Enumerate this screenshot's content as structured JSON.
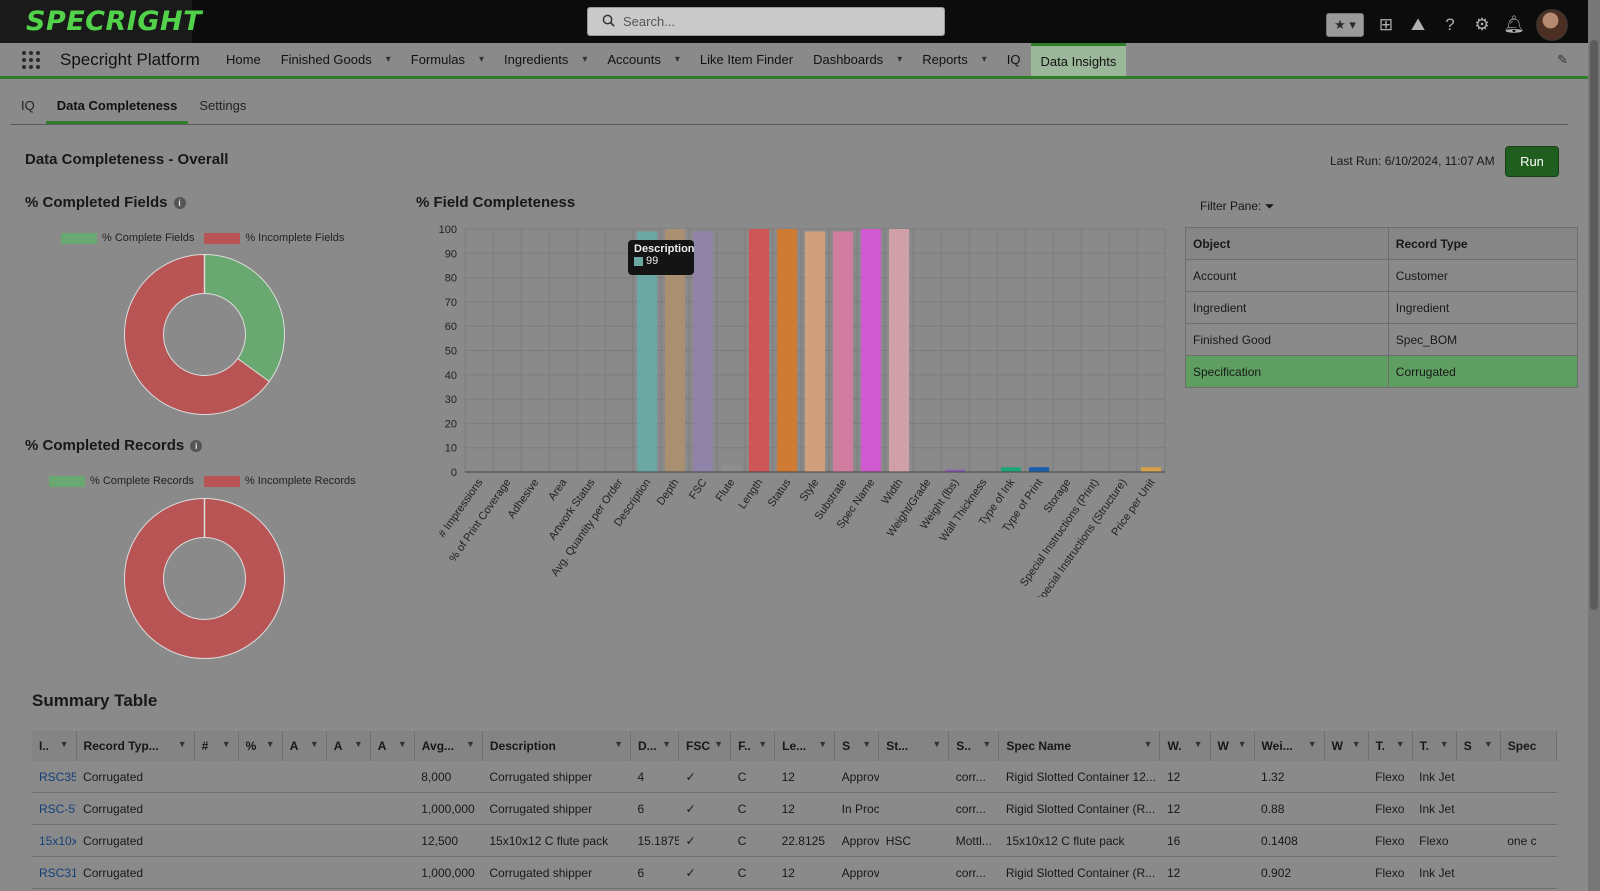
{
  "topbar": {
    "logo": "SPECRIGHT",
    "search_placeholder": "Search..."
  },
  "navbar": {
    "app_name": "Specright Platform",
    "items": [
      {
        "label": "Home",
        "dropdown": false
      },
      {
        "label": "Finished Goods",
        "dropdown": true
      },
      {
        "label": "Formulas",
        "dropdown": true
      },
      {
        "label": "Ingredients",
        "dropdown": true
      },
      {
        "label": "Accounts",
        "dropdown": true
      },
      {
        "label": "Like Item Finder",
        "dropdown": false
      },
      {
        "label": "Dashboards",
        "dropdown": true
      },
      {
        "label": "Reports",
        "dropdown": true
      },
      {
        "label": "IQ",
        "dropdown": false
      },
      {
        "label": "Data Insights",
        "dropdown": false,
        "active": true
      }
    ]
  },
  "tabs": [
    {
      "label": "IQ"
    },
    {
      "label": "Data Completeness",
      "active": true
    },
    {
      "label": "Settings"
    }
  ],
  "overall_title": "Data Completeness - Overall",
  "last_run": "Last Run: 6/10/2024, 11:07 AM",
  "run_label": "Run",
  "fields_panel": {
    "title": "% Completed Fields",
    "legend_complete": "% Complete Fields",
    "legend_incomplete": "% Incomplete Fields"
  },
  "records_panel": {
    "title": "% Completed Records",
    "legend_complete": "% Complete Records",
    "legend_incomplete": "% Incomplete Records"
  },
  "field_chart_title": "% Field Completeness",
  "tooltip": {
    "label": "Description",
    "value": "99"
  },
  "filter_label": "Filter Pane:",
  "filter_table": {
    "headers": [
      "Object",
      "Record Type"
    ],
    "rows": [
      [
        "Account",
        "Customer"
      ],
      [
        "Ingredient",
        "Ingredient"
      ],
      [
        "Finished Good",
        "Spec_BOM"
      ],
      [
        "Specification",
        "Corrugated"
      ]
    ],
    "selected_row": 3
  },
  "summary": {
    "title": "Summary Table",
    "headers": [
      "I..",
      "Record Typ...",
      "#",
      "%",
      "A",
      "A",
      "A",
      "Avg...",
      "Description",
      "D...",
      "FSC",
      "F..",
      "Le...",
      "S",
      "St...",
      "S..",
      "Spec Name",
      "W.",
      "W",
      "Wei...",
      "W",
      "T.",
      "T.",
      "S",
      "Spec"
    ],
    "rows": [
      [
        "RSC35",
        "Corrugated",
        "",
        "",
        "",
        "",
        "",
        "8,000",
        "Corrugated shipper",
        "4",
        "✓",
        "C",
        "12",
        "Approv",
        "",
        "corr...",
        "Rigid Slotted Container 12...",
        "12",
        "",
        "1.32",
        "",
        "Flexo",
        "Ink Jet",
        "",
        ""
      ],
      [
        "RSC-5'",
        "Corrugated",
        "",
        "",
        "",
        "",
        "",
        "1,000,000",
        "Corrugated shipper",
        "6",
        "✓",
        "C",
        "12",
        "In Proc",
        "",
        "corr...",
        "Rigid Slotted Container (R...",
        "12",
        "",
        "0.88",
        "",
        "Flexo",
        "Ink Jet",
        "",
        ""
      ],
      [
        "15x10x",
        "Corrugated",
        "",
        "",
        "",
        "",
        "",
        "12,500",
        "15x10x12 C flute pack",
        "15.1875",
        "✓",
        "C",
        "22.8125",
        "Approv",
        "HSC",
        "Mottl...",
        "15x10x12 C flute pack",
        "16",
        "",
        "0.1408",
        "",
        "Flexo",
        "Flexo",
        "",
        "one c"
      ],
      [
        "RSC31'",
        "Corrugated",
        "",
        "",
        "",
        "",
        "",
        "1,000,000",
        "Corrugated shipper",
        "6",
        "✓",
        "C",
        "12",
        "Approv",
        "",
        "corr...",
        "Rigid Slotted Container (R...",
        "12",
        "",
        "0.902",
        "",
        "Flexo",
        "Ink Jet",
        "",
        ""
      ]
    ]
  },
  "colors": {
    "complete": "#69a870",
    "incomplete": "#b85454",
    "brand_green": "#2f7d2a"
  },
  "chart_data": [
    {
      "type": "pie",
      "labels": [
        "% Complete Fields",
        "% Incomplete Fields"
      ],
      "values": [
        35,
        65
      ]
    },
    {
      "type": "pie",
      "labels": [
        "% Complete Records",
        "% Incomplete Records"
      ],
      "values": [
        0,
        100
      ]
    },
    {
      "type": "bar",
      "ylim": [
        0,
        100
      ],
      "yticks": [
        0,
        10,
        20,
        30,
        40,
        50,
        60,
        70,
        80,
        90,
        100
      ],
      "grid": true,
      "categories": [
        "# Impressions",
        "% of Print Coverage",
        "Adhesive",
        "Area",
        "Artwork Status",
        "Avg. Quantity per Order",
        "Description",
        "Depth",
        "FSC",
        "Flute",
        "Length",
        "Status",
        "Style",
        "Substrate",
        "Spec Name",
        "Width",
        "Weight/Grade",
        "Weight (lbs)",
        "Wall Thickness",
        "Type of Ink",
        "Type of Print",
        "Storage",
        "Special Instructions (Print)",
        "Special Instructions (Structure)",
        "Price per Unit"
      ],
      "values": [
        0,
        0,
        0,
        0,
        0,
        1,
        99,
        100,
        99,
        3,
        100,
        100,
        99,
        99,
        100,
        100,
        0,
        1,
        0,
        2,
        2,
        0,
        0,
        0,
        2
      ],
      "bar_colors": [
        "#6a8fa8",
        "#6a8fa8",
        "#6a8fa8",
        "#6a8fa8",
        "#6a8fa8",
        "#8a8a8a",
        "#6ba8a4",
        "#a89070",
        "#8f84a8",
        "#8f8f8f",
        "#cf5656",
        "#cf7b33",
        "#d0a07c",
        "#d07da0",
        "#d05ad0",
        "#d0a0a8",
        "#6a8fa8",
        "#8a5fb8",
        "#6a8fa8",
        "#1fa57a",
        "#1a5fb0",
        "#6a8fa8",
        "#6a8fa8",
        "#6a8fa8",
        "#d4a24a"
      ]
    }
  ]
}
